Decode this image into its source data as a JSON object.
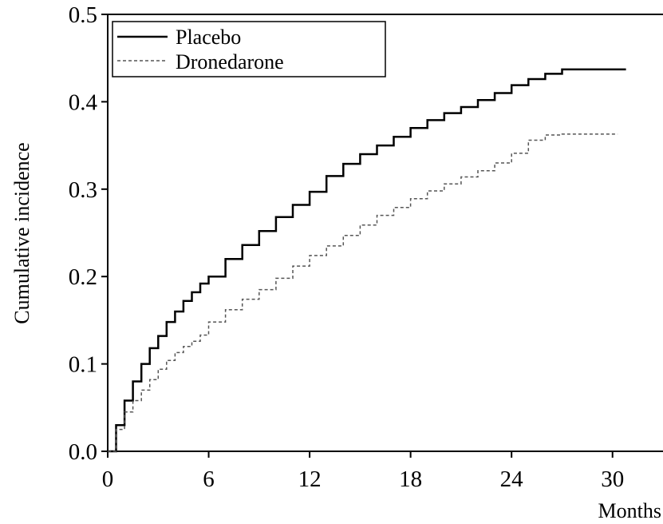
{
  "chart_data": {
    "type": "line",
    "xlabel": "Months",
    "ylabel": "Cumulative incidence",
    "xlim": [
      0,
      33
    ],
    "ylim": [
      0,
      0.5
    ],
    "x_ticks": [
      "0",
      "6",
      "12",
      "18",
      "24",
      "30"
    ],
    "y_ticks": [
      "0.0",
      "0.1",
      "0.2",
      "0.3",
      "0.4",
      "0.5"
    ],
    "grid": false,
    "legend_position": "top-left",
    "series": [
      {
        "name": "Placebo",
        "line_style": "solid",
        "color": "#000000",
        "points": [
          [
            0,
            0
          ],
          [
            0.5,
            0.03
          ],
          [
            1,
            0.058
          ],
          [
            1.5,
            0.08
          ],
          [
            2,
            0.1
          ],
          [
            2.5,
            0.118
          ],
          [
            3,
            0.132
          ],
          [
            3.5,
            0.148
          ],
          [
            4,
            0.16
          ],
          [
            4.5,
            0.172
          ],
          [
            5,
            0.182
          ],
          [
            5.5,
            0.192
          ],
          [
            6,
            0.2
          ],
          [
            7,
            0.22
          ],
          [
            8,
            0.236
          ],
          [
            9,
            0.252
          ],
          [
            10,
            0.268
          ],
          [
            11,
            0.282
          ],
          [
            12,
            0.297
          ],
          [
            13,
            0.315
          ],
          [
            14,
            0.329
          ],
          [
            15,
            0.34
          ],
          [
            16,
            0.35
          ],
          [
            17,
            0.36
          ],
          [
            18,
            0.37
          ],
          [
            19,
            0.379
          ],
          [
            20,
            0.387
          ],
          [
            21,
            0.394
          ],
          [
            22,
            0.402
          ],
          [
            23,
            0.41
          ],
          [
            24,
            0.419
          ],
          [
            25,
            0.426
          ],
          [
            26,
            0.432
          ],
          [
            27,
            0.437
          ],
          [
            28,
            0.437
          ],
          [
            29,
            0.437
          ],
          [
            30,
            0.437
          ],
          [
            30.8,
            0.437
          ]
        ]
      },
      {
        "name": "Dronedarone",
        "line_style": "dashed",
        "color": "#555555",
        "points": [
          [
            0,
            0
          ],
          [
            0.5,
            0.025
          ],
          [
            1,
            0.045
          ],
          [
            1.5,
            0.058
          ],
          [
            2,
            0.07
          ],
          [
            2.5,
            0.082
          ],
          [
            3,
            0.094
          ],
          [
            3.5,
            0.104
          ],
          [
            4,
            0.113
          ],
          [
            4.5,
            0.12
          ],
          [
            5,
            0.126
          ],
          [
            5.5,
            0.133
          ],
          [
            6,
            0.148
          ],
          [
            7,
            0.162
          ],
          [
            8,
            0.174
          ],
          [
            9,
            0.185
          ],
          [
            10,
            0.198
          ],
          [
            11,
            0.212
          ],
          [
            12,
            0.224
          ],
          [
            13,
            0.235
          ],
          [
            14,
            0.247
          ],
          [
            15,
            0.259
          ],
          [
            16,
            0.27
          ],
          [
            17,
            0.279
          ],
          [
            18,
            0.289
          ],
          [
            19,
            0.298
          ],
          [
            20,
            0.306
          ],
          [
            21,
            0.314
          ],
          [
            22,
            0.321
          ],
          [
            23,
            0.33
          ],
          [
            24,
            0.341
          ],
          [
            25,
            0.356
          ],
          [
            26,
            0.362
          ],
          [
            27,
            0.363
          ],
          [
            28,
            0.363
          ],
          [
            29,
            0.363
          ],
          [
            30,
            0.363
          ],
          [
            30.3,
            0.363
          ]
        ]
      }
    ]
  }
}
